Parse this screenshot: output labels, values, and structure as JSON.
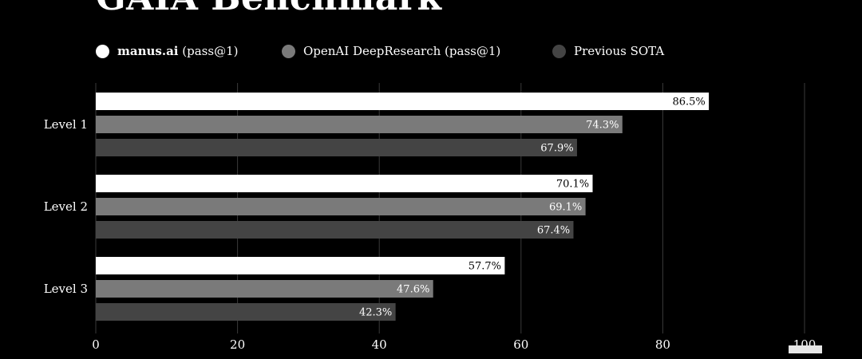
{
  "title": "GAIA Benchmark",
  "legend": [
    {
      "name": "manus.ai",
      "suffix": "(pass@1)",
      "color": "#ffffff"
    },
    {
      "name": "OpenAI DeepResearch",
      "suffix": "(pass@1)",
      "color": "#7a7a7a"
    },
    {
      "name": "Previous SOTA",
      "suffix": "",
      "color": "#444444"
    }
  ],
  "chart_data": {
    "type": "bar",
    "orientation": "horizontal",
    "title": "GAIA Benchmark",
    "categories": [
      "Level 1",
      "Level 2",
      "Level 3"
    ],
    "series": [
      {
        "name": "manus.ai (pass@1)",
        "color": "#ffffff",
        "values": [
          86.5,
          70.1,
          57.7
        ],
        "labels": [
          "86.5%",
          "70.1%",
          "57.7%"
        ]
      },
      {
        "name": "OpenAI DeepResearch (pass@1)",
        "color": "#7a7a7a",
        "values": [
          74.3,
          69.1,
          47.6
        ],
        "labels": [
          "74.3%",
          "69.1%",
          "47.6%"
        ]
      },
      {
        "name": "Previous SOTA",
        "color": "#444444",
        "values": [
          67.9,
          67.4,
          42.3
        ],
        "labels": [
          "67.9%",
          "67.4%",
          "42.3%"
        ]
      }
    ],
    "xlim": [
      0,
      100
    ],
    "xticks": [
      0,
      20,
      40,
      60,
      80,
      100
    ],
    "grid": "vertical",
    "legend_position": "top"
  }
}
